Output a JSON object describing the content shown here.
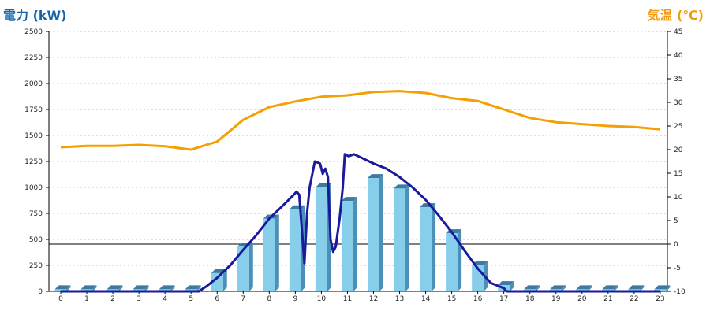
{
  "chart_data": {
    "type": "bar",
    "title": "",
    "left_axis_label": "電力 (kW)",
    "right_axis_label": "気温 (℃)",
    "categories": [
      "0",
      "1",
      "2",
      "3",
      "4",
      "5",
      "6",
      "7",
      "8",
      "9",
      "10",
      "11",
      "12",
      "13",
      "14",
      "15",
      "16",
      "17",
      "18",
      "19",
      "20",
      "21",
      "22",
      "23"
    ],
    "ylim_left": [
      0,
      2500
    ],
    "yticks_left": [
      0,
      250,
      500,
      750,
      1000,
      1250,
      1500,
      1750,
      2000,
      2250,
      2500
    ],
    "ylim_right": [
      -10,
      45
    ],
    "yticks_right": [
      -10,
      -5,
      0,
      5,
      10,
      15,
      20,
      25,
      30,
      35,
      40,
      45
    ],
    "grid": true,
    "series": [
      {
        "type": "bar",
        "axis": "left",
        "color": "#87ceeb",
        "values": [
          20,
          20,
          20,
          20,
          20,
          20,
          175,
          430,
          700,
          790,
          1000,
          870,
          1090,
          990,
          810,
          560,
          250,
          60,
          20,
          20,
          20,
          20,
          20,
          20
        ]
      },
      {
        "type": "line",
        "axis": "left",
        "color": "#1a1a9c",
        "x": [
          0,
          1,
          2,
          3,
          4,
          5,
          5.3,
          5.6,
          6,
          6.5,
          7,
          7.5,
          8,
          8.5,
          8.9,
          9.05,
          9.15,
          9.25,
          9.35,
          9.45,
          9.55,
          9.75,
          9.95,
          10.05,
          10.15,
          10.25,
          10.35,
          10.45,
          10.55,
          10.7,
          10.82,
          10.9,
          11.05,
          11.25,
          11.5,
          12,
          12.5,
          13,
          13.5,
          14,
          14.5,
          15,
          15.5,
          16,
          16.5,
          17,
          17.1,
          17.3,
          18,
          19,
          20,
          21,
          22,
          23
        ],
        "values": [
          0,
          0,
          0,
          0,
          0,
          0,
          0,
          50,
          130,
          250,
          400,
          540,
          700,
          820,
          920,
          960,
          930,
          600,
          270,
          750,
          1000,
          1250,
          1230,
          1130,
          1180,
          1100,
          500,
          380,
          430,
          700,
          1000,
          1320,
          1300,
          1320,
          1290,
          1230,
          1180,
          1100,
          1000,
          880,
          730,
          570,
          390,
          220,
          80,
          30,
          0,
          0,
          0,
          0,
          0,
          0,
          0,
          0
        ]
      },
      {
        "type": "line",
        "axis": "right",
        "color": "#f5a000",
        "values": [
          20.5,
          20.8,
          20.8,
          21.0,
          20.7,
          20.0,
          21.7,
          26.3,
          29.0,
          30.2,
          31.2,
          31.5,
          32.2,
          32.4,
          32.0,
          30.9,
          30.3,
          28.5,
          26.7,
          25.8,
          25.4,
          25.0,
          24.8,
          24.3
        ]
      }
    ]
  }
}
